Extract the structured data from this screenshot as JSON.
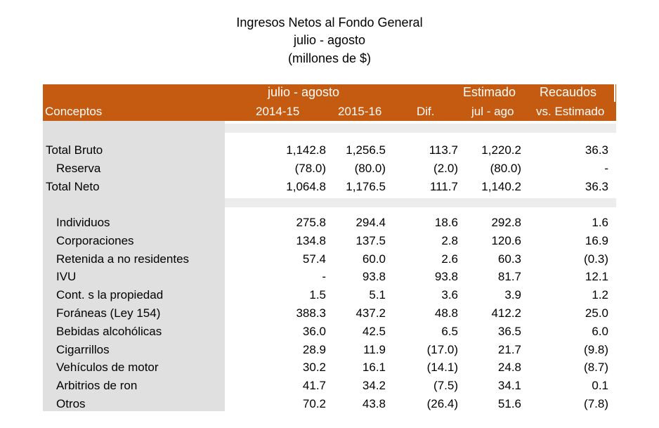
{
  "title": {
    "line1": "Ingresos Netos al Fondo General",
    "line2": "julio - agosto",
    "line3": "(millones de $)"
  },
  "header": {
    "period": "julio - agosto",
    "estimado": "Estimado",
    "recaudos": "Recaudos",
    "conceptos": "Conceptos",
    "y1": "2014-15",
    "y2": "2015-16",
    "dif": "Dif.",
    "julago": "jul - ago",
    "vs": "vs. Estimado"
  },
  "summary": [
    {
      "label": "Total Bruto",
      "v1": "1,142.8",
      "v2": "1,256.5",
      "dif": "113.7",
      "est": "1,220.2",
      "vs": "36.3"
    },
    {
      "label": "Reserva",
      "v1": "(78.0)",
      "v2": "(80.0)",
      "dif": "(2.0)",
      "est": "(80.0)",
      "vs": "-"
    },
    {
      "label": "Total Neto",
      "v1": "1,064.8",
      "v2": "1,176.5",
      "dif": "111.7",
      "est": "1,140.2",
      "vs": "36.3"
    }
  ],
  "rows": [
    {
      "label": "Individuos",
      "v1": "275.8",
      "v2": "294.4",
      "dif": "18.6",
      "est": "292.8",
      "vs": "1.6"
    },
    {
      "label": "Corporaciones",
      "v1": "134.8",
      "v2": "137.5",
      "dif": "2.8",
      "est": "120.6",
      "vs": "16.9"
    },
    {
      "label": "Retenida a no residentes",
      "v1": "57.4",
      "v2": "60.0",
      "dif": "2.6",
      "est": "60.3",
      "vs": "(0.3)"
    },
    {
      "label": "IVU",
      "v1": "-",
      "v2": "93.8",
      "dif": "93.8",
      "est": "81.7",
      "vs": "12.1"
    },
    {
      "label": "Cont. s la propiedad",
      "v1": "1.5",
      "v2": "5.1",
      "dif": "3.6",
      "est": "3.9",
      "vs": "1.2"
    },
    {
      "label": "Foráneas (Ley 154)",
      "v1": "388.3",
      "v2": "437.2",
      "dif": "48.8",
      "est": "412.2",
      "vs": "25.0"
    },
    {
      "label": "Bebidas alcohólicas",
      "v1": "36.0",
      "v2": "42.5",
      "dif": "6.5",
      "est": "36.5",
      "vs": "6.0"
    },
    {
      "label": "Cigarrillos",
      "v1": "28.9",
      "v2": "11.9",
      "dif": "(17.0)",
      "est": "21.7",
      "vs": "(9.8)"
    },
    {
      "label": "Vehículos de motor",
      "v1": "30.2",
      "v2": "16.1",
      "dif": "(14.1)",
      "est": "24.8",
      "vs": "(8.7)"
    },
    {
      "label": "Arbitrios de ron",
      "v1": "41.7",
      "v2": "34.2",
      "dif": "(7.5)",
      "est": "34.1",
      "vs": "0.1"
    },
    {
      "label": "Otros",
      "v1": "70.2",
      "v2": "43.8",
      "dif": "(26.4)",
      "est": "51.6",
      "vs": "(7.8)"
    }
  ]
}
